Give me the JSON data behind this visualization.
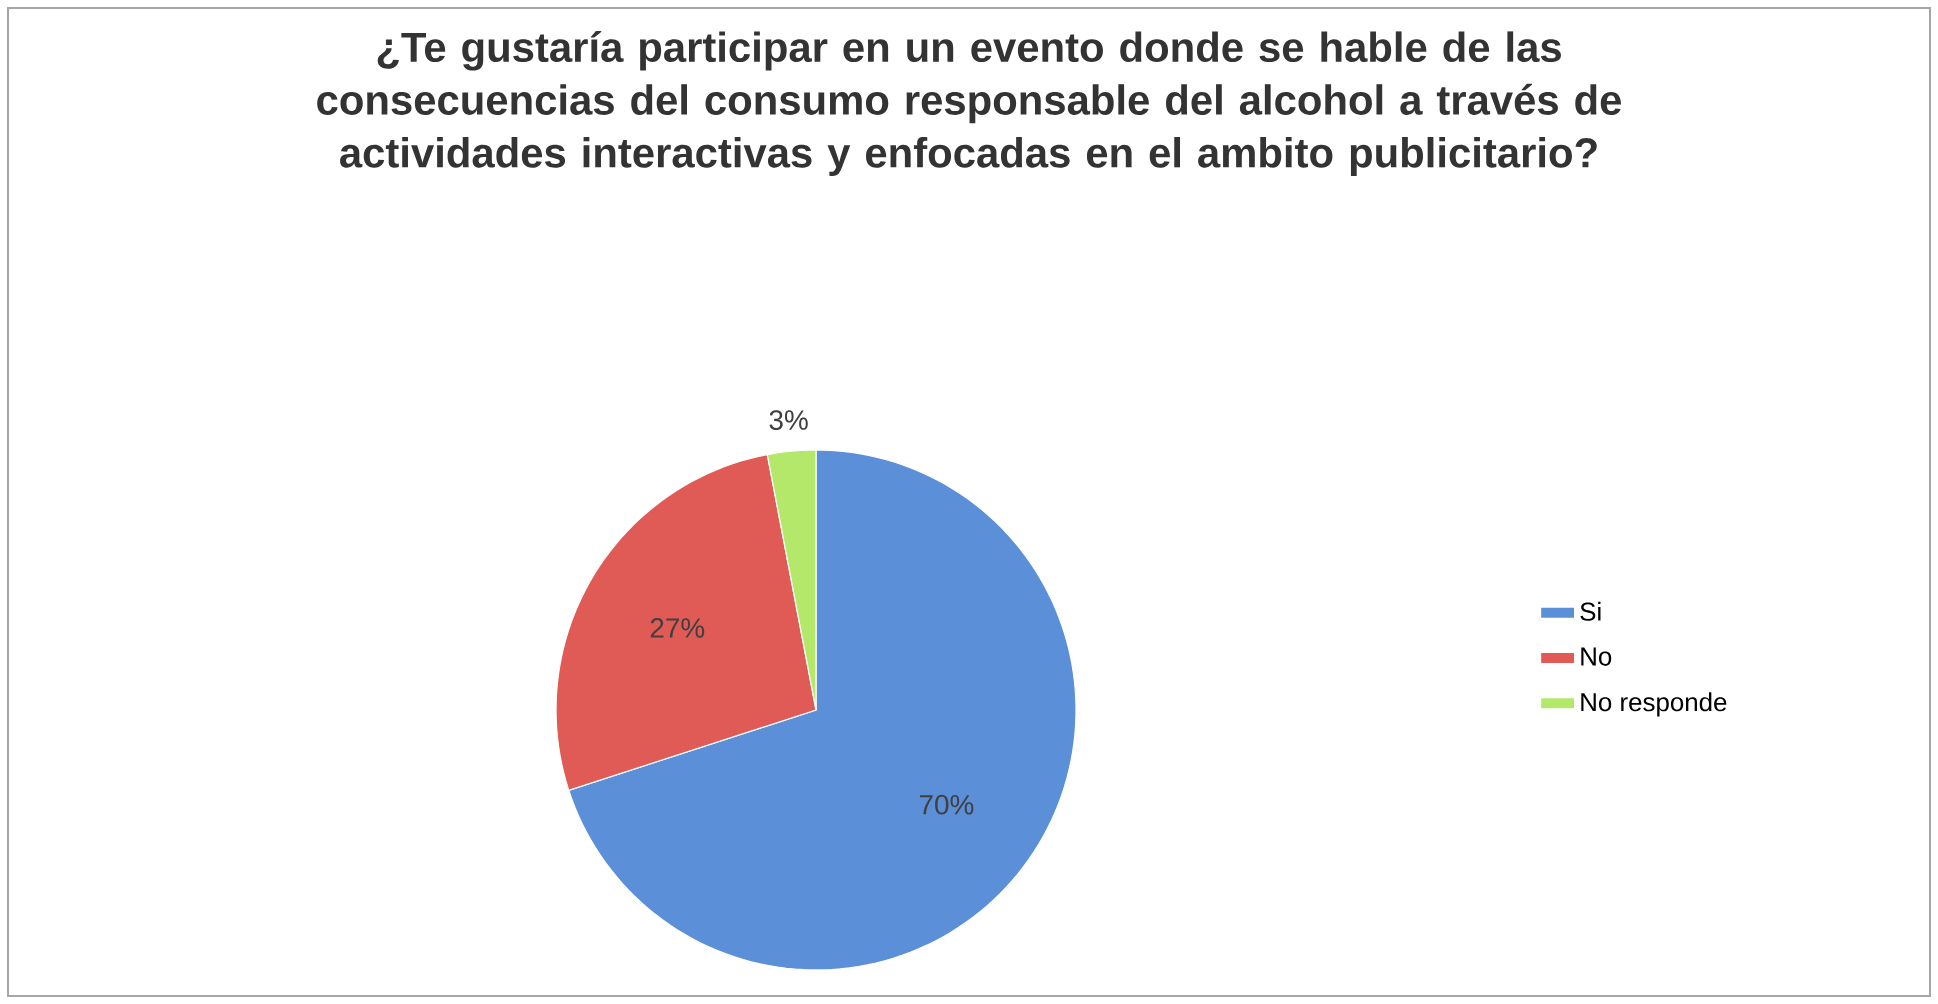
{
  "chart_data": {
    "type": "pie",
    "title": "¿Te gustaría participar en un evento donde se hable de las consecuencias del consumo responsable del alcohol a través de actividades interactivas y enfocadas en el ambito publicitario?",
    "categories": [
      "Si",
      "No",
      "No responde"
    ],
    "values": [
      70,
      27,
      3
    ],
    "colors": [
      "#5b8fd8",
      "#e05a56",
      "#b4e86a"
    ],
    "value_labels": [
      "70%",
      "27%",
      "3%"
    ],
    "legend": "right"
  }
}
